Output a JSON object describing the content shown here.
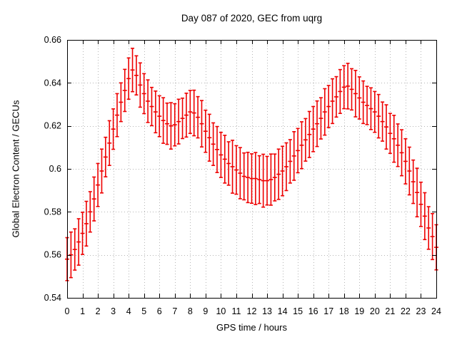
{
  "page": {
    "background": "#ffffff"
  },
  "chart_data": {
    "type": "scatter",
    "subtype": "yerrorbars",
    "title": "Day 087 of 2020, GEC from uqrg",
    "xlabel": "GPS time / hours",
    "ylabel": "Global Electron Content / GECUs",
    "xlim": [
      0,
      24
    ],
    "ylim": [
      0.54,
      0.66
    ],
    "xtick_step": 1,
    "ytick_step": 0.02,
    "xtick_labels": [
      "0",
      "1",
      "2",
      "3",
      "4",
      "5",
      "6",
      "7",
      "8",
      "9",
      "10",
      "11",
      "12",
      "13",
      "14",
      "15",
      "16",
      "17",
      "18",
      "19",
      "20",
      "21",
      "22",
      "23",
      "24"
    ],
    "ytick_labels": [
      "0.54",
      "0.56",
      "0.58",
      "0.6",
      "0.62",
      "0.64",
      "0.66"
    ],
    "grid": true,
    "grid_style": "dotted",
    "legend": "none",
    "series_name": "GEC",
    "series_color": "#ee0000",
    "grid_color": "#b4b4b4",
    "axis_color": "#000000",
    "x": [
      0,
      0.25,
      0.5,
      0.75,
      1,
      1.25,
      1.5,
      1.75,
      2,
      2.25,
      2.5,
      2.75,
      3,
      3.25,
      3.5,
      3.75,
      4,
      4.25,
      4.5,
      4.75,
      5,
      5.25,
      5.5,
      5.75,
      6,
      6.25,
      6.5,
      6.75,
      7,
      7.25,
      7.5,
      7.75,
      8,
      8.25,
      8.5,
      8.75,
      9,
      9.25,
      9.5,
      9.75,
      10,
      10.25,
      10.5,
      10.75,
      11,
      11.25,
      11.5,
      11.75,
      12,
      12.25,
      12.5,
      12.75,
      13,
      13.25,
      13.5,
      13.75,
      14,
      14.25,
      14.5,
      14.75,
      15,
      15.25,
      15.5,
      15.75,
      16,
      16.25,
      16.5,
      16.75,
      17,
      17.25,
      17.5,
      17.75,
      18,
      18.25,
      18.5,
      18.75,
      19,
      19.25,
      19.5,
      19.75,
      20,
      20.25,
      20.5,
      20.75,
      21,
      21.25,
      21.5,
      21.75,
      22,
      22.25,
      22.5,
      22.75,
      23,
      23.25,
      23.5,
      23.75,
      24
    ],
    "y": [
      0.558,
      0.56,
      0.5625,
      0.566,
      0.57,
      0.5745,
      0.58,
      0.586,
      0.5925,
      0.599,
      0.6055,
      0.612,
      0.6185,
      0.625,
      0.631,
      0.6365,
      0.642,
      0.646,
      0.6435,
      0.639,
      0.635,
      0.6315,
      0.629,
      0.6265,
      0.6245,
      0.6225,
      0.621,
      0.62,
      0.6205,
      0.622,
      0.6235,
      0.625,
      0.6265,
      0.626,
      0.624,
      0.621,
      0.6175,
      0.6145,
      0.6115,
      0.609,
      0.6065,
      0.6045,
      0.6025,
      0.601,
      0.5995,
      0.598,
      0.5965,
      0.596,
      0.5955,
      0.5955,
      0.595,
      0.5945,
      0.5945,
      0.595,
      0.596,
      0.5975,
      0.599,
      0.601,
      0.6035,
      0.606,
      0.6085,
      0.611,
      0.6135,
      0.616,
      0.6185,
      0.621,
      0.6235,
      0.6265,
      0.629,
      0.6315,
      0.6335,
      0.636,
      0.638,
      0.6385,
      0.637,
      0.635,
      0.633,
      0.631,
      0.6295,
      0.628,
      0.6265,
      0.6245,
      0.622,
      0.6195,
      0.6165,
      0.614,
      0.611,
      0.6075,
      0.6035,
      0.599,
      0.594,
      0.589,
      0.5835,
      0.578,
      0.5725,
      0.5685,
      0.5635
    ],
    "yerr": [
      0.01,
      0.0106,
      0.0096,
      0.0108,
      0.0098,
      0.0104,
      0.0094,
      0.0102,
      0.01,
      0.0102,
      0.0092,
      0.0104,
      0.0094,
      0.01,
      0.009,
      0.0098,
      0.0096,
      0.0101,
      0.0091,
      0.0103,
      0.0093,
      0.0099,
      0.0089,
      0.0097,
      0.0095,
      0.0106,
      0.0096,
      0.0108,
      0.0098,
      0.0104,
      0.0094,
      0.0102,
      0.01,
      0.0106,
      0.0096,
      0.0108,
      0.0098,
      0.0109,
      0.0099,
      0.0107,
      0.0105,
      0.0111,
      0.0101,
      0.0123,
      0.0113,
      0.0119,
      0.0109,
      0.0117,
      0.0115,
      0.0121,
      0.0111,
      0.0123,
      0.0113,
      0.0119,
      0.0109,
      0.0117,
      0.0115,
      0.0111,
      0.0101,
      0.0113,
      0.0103,
      0.0109,
      0.0099,
      0.0107,
      0.0105,
      0.0106,
      0.0096,
      0.0108,
      0.0098,
      0.0104,
      0.0094,
      0.0102,
      0.01,
      0.0106,
      0.0096,
      0.0108,
      0.0098,
      0.0099,
      0.0089,
      0.0097,
      0.0095,
      0.0101,
      0.0091,
      0.0103,
      0.0093,
      0.0109,
      0.0099,
      0.0107,
      0.0105,
      0.0111,
      0.0101,
      0.0113,
      0.0103,
      0.0109,
      0.0099,
      0.0107,
      0.0105
    ]
  }
}
